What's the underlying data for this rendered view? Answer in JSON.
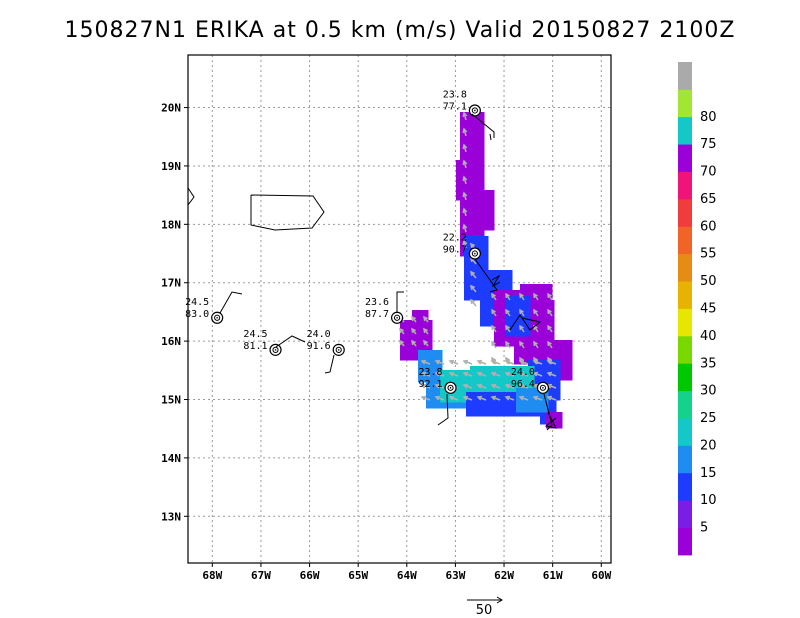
{
  "title": "150827N1 ERIKA at 0.5 km (m/s) Valid 20150827 2100Z",
  "lon_ticks": [
    {
      "lon": -68,
      "label": "68W"
    },
    {
      "lon": -67,
      "label": "67W"
    },
    {
      "lon": -66,
      "label": "66W"
    },
    {
      "lon": -65,
      "label": "65W"
    },
    {
      "lon": -64,
      "label": "64W"
    },
    {
      "lon": -63,
      "label": "63W"
    },
    {
      "lon": -62,
      "label": "62W"
    },
    {
      "lon": -61,
      "label": "61W"
    },
    {
      "lon": -60,
      "label": "60W"
    }
  ],
  "lat_ticks": [
    {
      "lat": 13,
      "label": "13N"
    },
    {
      "lat": 14,
      "label": "14N"
    },
    {
      "lat": 15,
      "label": "15N"
    },
    {
      "lat": 16,
      "label": "16N"
    },
    {
      "lat": 17,
      "label": "17N"
    },
    {
      "lat": 18,
      "label": "18N"
    },
    {
      "lat": 19,
      "label": "19N"
    },
    {
      "lat": 20,
      "label": "20N"
    }
  ],
  "map_extent": {
    "lon_min": -68.5,
    "lon_max": -59.8,
    "lat_min": 12.2,
    "lat_max": 20.9
  },
  "grid": "dotted",
  "colorbar": {
    "levels": [
      "",
      "5",
      "10",
      "15",
      "20",
      "25",
      "30",
      "35",
      "40",
      "45",
      "50",
      "55",
      "60",
      "65",
      "70",
      "75",
      "80"
    ],
    "colors": [
      "#9a00d8",
      "#7a1ee6",
      "#1e3cff",
      "#1e8cf0",
      "#14c8c8",
      "#14d28c",
      "#00c800",
      "#78d800",
      "#e6e600",
      "#e6b400",
      "#e68c14",
      "#f06428",
      "#f03c3c",
      "#f0147a",
      "#9a00d8",
      "#14c8c8",
      "#a0e632",
      "#aaaaaa"
    ],
    "labels": [
      "5",
      "10",
      "15",
      "20",
      "25",
      "30",
      "35",
      "40",
      "45",
      "50",
      "55",
      "60",
      "65",
      "70",
      "75",
      "80"
    ]
  },
  "stations": [
    {
      "lon": -62.6,
      "lat": 19.95,
      "temp": "23.8",
      "pres": "77.1"
    },
    {
      "lon": -62.6,
      "lat": 17.5,
      "temp": "22.2",
      "pres": "90.7"
    },
    {
      "lon": -67.9,
      "lat": 16.4,
      "temp": "24.5",
      "pres": "83.0"
    },
    {
      "lon": -66.7,
      "lat": 15.85,
      "temp": "24.5",
      "pres": "81.1"
    },
    {
      "lon": -65.4,
      "lat": 15.85,
      "temp": "24.0",
      "pres": "91.6"
    },
    {
      "lon": -64.2,
      "lat": 16.4,
      "temp": "23.6",
      "pres": "87.7"
    },
    {
      "lon": -63.1,
      "lat": 15.2,
      "temp": "23.8",
      "pres": "92.1"
    },
    {
      "lon": -61.2,
      "lat": 15.2,
      "temp": "24.0",
      "pres": "96.4"
    }
  ],
  "reference_vector": {
    "label": "50"
  },
  "swath_colors": {
    "violet": "#9a00d8",
    "blue": "#1e3cff",
    "lightblue": "#1e8cf0",
    "cyan": "#14c8c8"
  }
}
